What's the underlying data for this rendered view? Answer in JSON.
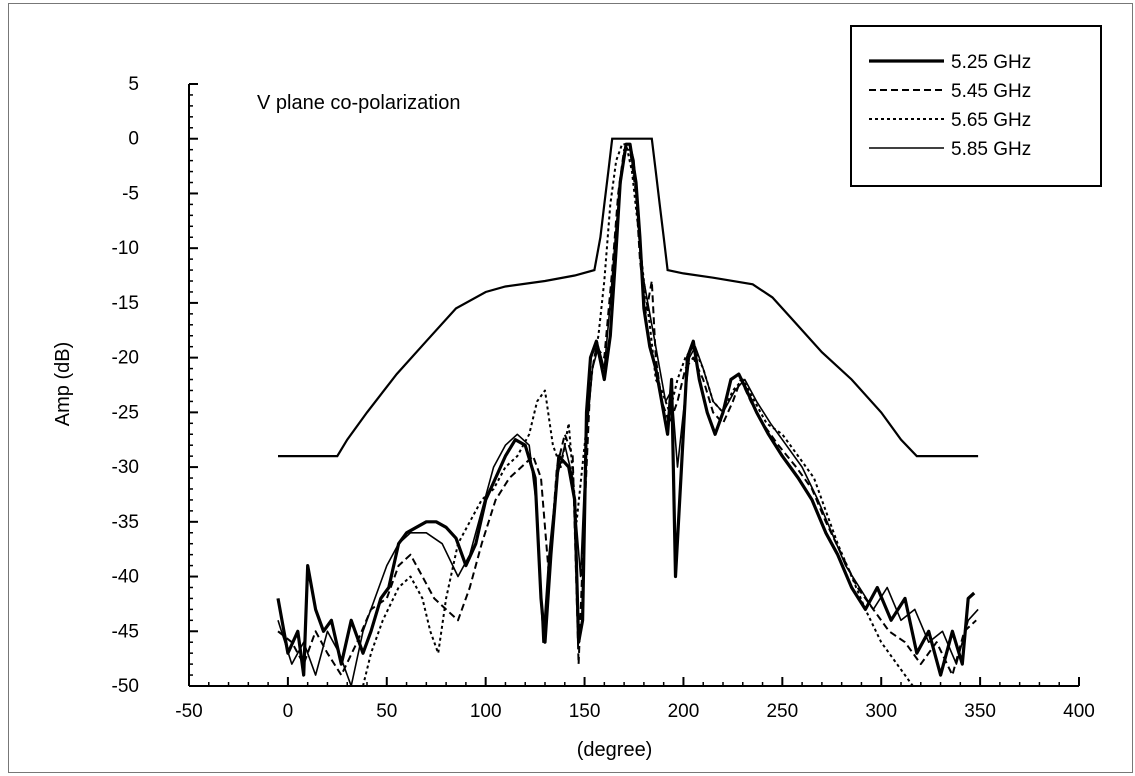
{
  "chart_data": {
    "type": "line",
    "annotation": "V plane co-polarization",
    "xlabel": "(degree)",
    "ylabel": "Amp (dB)",
    "xlim": [
      -50,
      400
    ],
    "ylim": [
      -50,
      5
    ],
    "xticks": [
      -50,
      0,
      50,
      100,
      150,
      200,
      250,
      300,
      350,
      400
    ],
    "yticks": [
      5,
      0,
      -5,
      -10,
      -15,
      -20,
      -25,
      -30,
      -35,
      -40,
      -45,
      -50
    ],
    "legend_position": "top-right",
    "mask": {
      "points": [
        [
          -5,
          -29
        ],
        [
          25,
          -29
        ],
        [
          30,
          -27.5
        ],
        [
          40,
          -25
        ],
        [
          55,
          -21.5
        ],
        [
          70,
          -18.5
        ],
        [
          85,
          -15.5
        ],
        [
          100,
          -14
        ],
        [
          110,
          -13.5
        ],
        [
          130,
          -13
        ],
        [
          145,
          -12.5
        ],
        [
          155,
          -12
        ],
        [
          158,
          -9
        ],
        [
          160,
          -6
        ],
        [
          162,
          -3
        ],
        [
          164,
          0
        ],
        [
          184,
          0
        ],
        [
          186,
          -3
        ],
        [
          188,
          -6
        ],
        [
          190,
          -9
        ],
        [
          192,
          -12
        ],
        [
          200,
          -12.3
        ],
        [
          215,
          -12.7
        ],
        [
          235,
          -13.3
        ],
        [
          245,
          -14.5
        ],
        [
          255,
          -16.5
        ],
        [
          270,
          -19.5
        ],
        [
          285,
          -22
        ],
        [
          300,
          -25
        ],
        [
          310,
          -27.5
        ],
        [
          318,
          -29
        ],
        [
          349,
          -29
        ]
      ]
    },
    "series": [
      {
        "name": "5.25 GHz",
        "style": "solid-thick",
        "points": [
          [
            -5,
            -42
          ],
          [
            0,
            -47
          ],
          [
            5,
            -45
          ],
          [
            8,
            -49
          ],
          [
            10,
            -39
          ],
          [
            14,
            -43
          ],
          [
            18,
            -45
          ],
          [
            22,
            -44
          ],
          [
            27,
            -48
          ],
          [
            32,
            -44
          ],
          [
            38,
            -47
          ],
          [
            42,
            -45
          ],
          [
            47,
            -42
          ],
          [
            51,
            -41
          ],
          [
            56,
            -37
          ],
          [
            60,
            -36
          ],
          [
            65,
            -35.5
          ],
          [
            70,
            -35
          ],
          [
            75,
            -35
          ],
          [
            80,
            -35.5
          ],
          [
            85,
            -36.5
          ],
          [
            90,
            -39
          ],
          [
            95,
            -37
          ],
          [
            100,
            -33
          ],
          [
            105,
            -31
          ],
          [
            110,
            -29
          ],
          [
            115,
            -27.5
          ],
          [
            120,
            -28
          ],
          [
            125,
            -31
          ],
          [
            128,
            -42
          ],
          [
            130,
            -46
          ],
          [
            133,
            -38
          ],
          [
            137,
            -29
          ],
          [
            142,
            -30
          ],
          [
            145,
            -33
          ],
          [
            147,
            -46
          ],
          [
            149,
            -44
          ],
          [
            151,
            -25
          ],
          [
            153,
            -20
          ],
          [
            156,
            -18.5
          ],
          [
            160,
            -22
          ],
          [
            163,
            -18
          ],
          [
            166,
            -10
          ],
          [
            168,
            -4
          ],
          [
            171,
            -0.5
          ],
          [
            173,
            -0.5
          ],
          [
            176,
            -4
          ],
          [
            178,
            -9
          ],
          [
            180,
            -15.5
          ],
          [
            183,
            -19
          ],
          [
            186,
            -21
          ],
          [
            189,
            -24
          ],
          [
            192,
            -27
          ],
          [
            194,
            -22
          ],
          [
            196,
            -40
          ],
          [
            199,
            -30
          ],
          [
            202,
            -20
          ],
          [
            205,
            -18.5
          ],
          [
            208,
            -22
          ],
          [
            212,
            -25
          ],
          [
            216,
            -27
          ],
          [
            220,
            -25
          ],
          [
            224,
            -22
          ],
          [
            228,
            -21.5
          ],
          [
            232,
            -23
          ],
          [
            237,
            -25
          ],
          [
            243,
            -27
          ],
          [
            250,
            -29
          ],
          [
            258,
            -31
          ],
          [
            265,
            -33
          ],
          [
            272,
            -36
          ],
          [
            278,
            -38
          ],
          [
            285,
            -41
          ],
          [
            292,
            -43
          ],
          [
            298,
            -41
          ],
          [
            305,
            -44
          ],
          [
            312,
            -42
          ],
          [
            318,
            -47
          ],
          [
            324,
            -45
          ],
          [
            330,
            -49
          ],
          [
            336,
            -45
          ],
          [
            341,
            -48
          ],
          [
            344,
            -42
          ],
          [
            347,
            -41.5
          ]
        ]
      },
      {
        "name": "5.45 GHz",
        "style": "dashed",
        "points": [
          [
            -5,
            -45
          ],
          [
            2,
            -46
          ],
          [
            8,
            -48
          ],
          [
            14,
            -45
          ],
          [
            20,
            -47
          ],
          [
            27,
            -49
          ],
          [
            35,
            -46
          ],
          [
            42,
            -43
          ],
          [
            50,
            -42
          ],
          [
            56,
            -39
          ],
          [
            62,
            -38
          ],
          [
            68,
            -40
          ],
          [
            74,
            -42
          ],
          [
            80,
            -43
          ],
          [
            86,
            -44
          ],
          [
            92,
            -41
          ],
          [
            98,
            -37
          ],
          [
            105,
            -33
          ],
          [
            112,
            -31
          ],
          [
            118,
            -30
          ],
          [
            124,
            -29
          ],
          [
            128,
            -31
          ],
          [
            132,
            -40
          ],
          [
            136,
            -30
          ],
          [
            140,
            -27
          ],
          [
            144,
            -29
          ],
          [
            147,
            -48
          ],
          [
            150,
            -34
          ],
          [
            153,
            -22
          ],
          [
            156,
            -19
          ],
          [
            160,
            -20
          ],
          [
            164,
            -12
          ],
          [
            167,
            -5
          ],
          [
            170,
            -1
          ],
          [
            173,
            -1
          ],
          [
            176,
            -5
          ],
          [
            178,
            -11
          ],
          [
            181,
            -16
          ],
          [
            184,
            -13
          ],
          [
            186,
            -20
          ],
          [
            189,
            -24
          ],
          [
            193,
            -26
          ],
          [
            197,
            -24
          ],
          [
            201,
            -21
          ],
          [
            205,
            -20
          ],
          [
            210,
            -22
          ],
          [
            215,
            -25
          ],
          [
            220,
            -26
          ],
          [
            225,
            -24
          ],
          [
            229,
            -22
          ],
          [
            234,
            -24
          ],
          [
            240,
            -26
          ],
          [
            248,
            -28
          ],
          [
            257,
            -30
          ],
          [
            265,
            -32
          ],
          [
            272,
            -35
          ],
          [
            280,
            -38
          ],
          [
            288,
            -41
          ],
          [
            296,
            -43
          ],
          [
            304,
            -45
          ],
          [
            312,
            -46
          ],
          [
            320,
            -48
          ],
          [
            328,
            -46
          ],
          [
            336,
            -49
          ],
          [
            342,
            -45
          ],
          [
            348,
            -44
          ]
        ]
      },
      {
        "name": "5.65 GHz",
        "style": "dotted",
        "points": [
          [
            38,
            -50
          ],
          [
            42,
            -47
          ],
          [
            48,
            -44
          ],
          [
            56,
            -41
          ],
          [
            62,
            -40
          ],
          [
            68,
            -42
          ],
          [
            72,
            -45
          ],
          [
            76,
            -47
          ],
          [
            80,
            -42
          ],
          [
            86,
            -37
          ],
          [
            92,
            -35
          ],
          [
            98,
            -33
          ],
          [
            104,
            -32
          ],
          [
            110,
            -30
          ],
          [
            116,
            -29
          ],
          [
            122,
            -27
          ],
          [
            126,
            -24
          ],
          [
            130,
            -23
          ],
          [
            134,
            -28
          ],
          [
            138,
            -30
          ],
          [
            142,
            -26
          ],
          [
            146,
            -35
          ],
          [
            150,
            -28
          ],
          [
            154,
            -21
          ],
          [
            157,
            -18
          ],
          [
            160,
            -13
          ],
          [
            163,
            -6
          ],
          [
            166,
            -2
          ],
          [
            169,
            -0.5
          ],
          [
            171,
            -0.5
          ],
          [
            174,
            -3
          ],
          [
            177,
            -8
          ],
          [
            180,
            -13
          ],
          [
            183,
            -17
          ],
          [
            186,
            -22
          ],
          [
            189,
            -23
          ],
          [
            193,
            -25
          ],
          [
            197,
            -22
          ],
          [
            201,
            -20
          ],
          [
            205,
            -19
          ],
          [
            210,
            -21
          ],
          [
            215,
            -24
          ],
          [
            220,
            -25
          ],
          [
            225,
            -23
          ],
          [
            230,
            -22
          ],
          [
            236,
            -24
          ],
          [
            242,
            -26
          ],
          [
            250,
            -27
          ],
          [
            258,
            -29
          ],
          [
            266,
            -31
          ],
          [
            272,
            -34
          ],
          [
            278,
            -37
          ],
          [
            285,
            -40
          ],
          [
            292,
            -43
          ],
          [
            300,
            -46
          ],
          [
            308,
            -48
          ],
          [
            316,
            -50
          ]
        ]
      },
      {
        "name": "5.85 GHz",
        "style": "solid-thin",
        "points": [
          [
            -5,
            -44
          ],
          [
            2,
            -48
          ],
          [
            8,
            -46
          ],
          [
            14,
            -49
          ],
          [
            20,
            -45
          ],
          [
            26,
            -47
          ],
          [
            32,
            -50
          ],
          [
            38,
            -45
          ],
          [
            44,
            -42
          ],
          [
            50,
            -39
          ],
          [
            56,
            -37
          ],
          [
            62,
            -36
          ],
          [
            70,
            -36
          ],
          [
            78,
            -37
          ],
          [
            86,
            -40
          ],
          [
            92,
            -38
          ],
          [
            98,
            -34
          ],
          [
            104,
            -30
          ],
          [
            110,
            -28
          ],
          [
            116,
            -27
          ],
          [
            122,
            -28
          ],
          [
            126,
            -34
          ],
          [
            129,
            -46
          ],
          [
            132,
            -38
          ],
          [
            136,
            -31
          ],
          [
            140,
            -28
          ],
          [
            144,
            -31
          ],
          [
            148,
            -40
          ],
          [
            151,
            -27
          ],
          [
            154,
            -21
          ],
          [
            157,
            -19
          ],
          [
            160,
            -21
          ],
          [
            163,
            -15
          ],
          [
            166,
            -8
          ],
          [
            169,
            -3
          ],
          [
            171,
            -0.5
          ],
          [
            173,
            -0.5
          ],
          [
            175,
            -2
          ],
          [
            177,
            -7
          ],
          [
            179,
            -12
          ],
          [
            182,
            -15
          ],
          [
            185,
            -18
          ],
          [
            188,
            -21
          ],
          [
            191,
            -24
          ],
          [
            194,
            -23
          ],
          [
            197,
            -30
          ],
          [
            200,
            -25
          ],
          [
            203,
            -20
          ],
          [
            206,
            -19
          ],
          [
            210,
            -21
          ],
          [
            215,
            -24
          ],
          [
            220,
            -25
          ],
          [
            226,
            -23
          ],
          [
            231,
            -22
          ],
          [
            237,
            -24
          ],
          [
            244,
            -26
          ],
          [
            252,
            -28
          ],
          [
            260,
            -30
          ],
          [
            268,
            -33
          ],
          [
            275,
            -36
          ],
          [
            282,
            -39
          ],
          [
            289,
            -41
          ],
          [
            296,
            -43
          ],
          [
            303,
            -41
          ],
          [
            310,
            -44
          ],
          [
            317,
            -43
          ],
          [
            324,
            -46
          ],
          [
            331,
            -45
          ],
          [
            338,
            -48
          ],
          [
            344,
            -44
          ],
          [
            349,
            -43
          ]
        ]
      }
    ]
  }
}
